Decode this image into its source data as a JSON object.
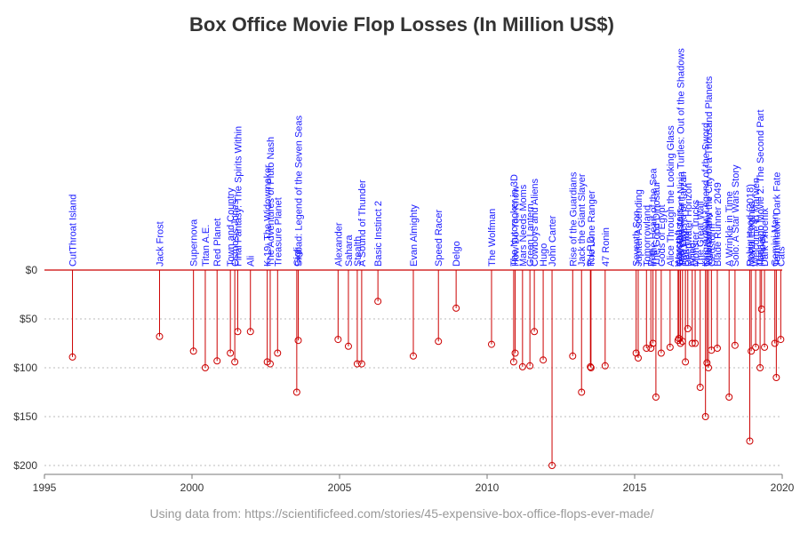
{
  "colors": {
    "stem": "#cc0000",
    "label": "#1a1aff",
    "title": "#333333",
    "footnote": "#999999",
    "grid": "#bbbbbb",
    "axis": "#777777"
  },
  "chart_data": {
    "type": "lollipop",
    "title": "Box Office Movie Flop Losses (In Million US$)",
    "footnote": "Using data from: https://scientificfeed.com/stories/45-expensive-box-office-flops-ever-made/",
    "xlabel": "",
    "ylabel": "",
    "xlim": [
      1995,
      2020
    ],
    "ylim": [
      0,
      200
    ],
    "x_ticks": [
      1995,
      2000,
      2005,
      2010,
      2015,
      2020
    ],
    "x_tick_labels": [
      "1995",
      "2000",
      "2005",
      "2010",
      "2015",
      "2020"
    ],
    "y_ticks": [
      0,
      50,
      100,
      150,
      200
    ],
    "y_tick_labels": [
      "$0",
      "$50",
      "$100",
      "$150",
      "$200"
    ],
    "y_direction": "downward",
    "grid": "horizontal dotted",
    "points": [
      {
        "label": "CutThroat Island",
        "x": 1995.95,
        "y": 89
      },
      {
        "label": "Jack Frost",
        "x": 1998.9,
        "y": 68
      },
      {
        "label": "Supernova",
        "x": 2000.05,
        "y": 83
      },
      {
        "label": "Titan A.E.",
        "x": 2000.45,
        "y": 100
      },
      {
        "label": "Red Planet",
        "x": 2000.85,
        "y": 93
      },
      {
        "label": "Town and Country",
        "x": 2001.3,
        "y": 85
      },
      {
        "label": "Osmosis Jones",
        "x": 2001.45,
        "y": 94
      },
      {
        "label": "Final Fantasy: The Spirits Within",
        "x": 2001.55,
        "y": 63
      },
      {
        "label": "Ali",
        "x": 2001.98,
        "y": 63
      },
      {
        "label": "K-19: The Widowmaker",
        "x": 2002.55,
        "y": 94
      },
      {
        "label": "The Adventures of Pluto Nash",
        "x": 2002.65,
        "y": 96
      },
      {
        "label": "Treasure Planet",
        "x": 2002.9,
        "y": 85
      },
      {
        "label": "Gigli",
        "x": 2003.55,
        "y": 125
      },
      {
        "label": "Sinbad: Legend of the Seven Seas",
        "x": 2003.6,
        "y": 72
      },
      {
        "label": "Alexander",
        "x": 2004.95,
        "y": 71
      },
      {
        "label": "Sahara",
        "x": 2005.3,
        "y": 78
      },
      {
        "label": "Stealth",
        "x": 2005.6,
        "y": 96
      },
      {
        "label": "A Sound of Thunder",
        "x": 2005.75,
        "y": 96
      },
      {
        "label": "Basic Instinct 2",
        "x": 2006.3,
        "y": 32
      },
      {
        "label": "Evan Almighty",
        "x": 2007.5,
        "y": 88
      },
      {
        "label": "Speed Racer",
        "x": 2008.35,
        "y": 73
      },
      {
        "label": "Delgo",
        "x": 2008.95,
        "y": 39
      },
      {
        "label": "The Wolfman",
        "x": 2010.15,
        "y": 76
      },
      {
        "label": "The Nutcracker in 3D",
        "x": 2010.9,
        "y": 94
      },
      {
        "label": "How Do You Know",
        "x": 2010.95,
        "y": 85
      },
      {
        "label": "Mars Needs Moms",
        "x": 2011.2,
        "y": 99
      },
      {
        "label": "Green Lantern",
        "x": 2011.45,
        "y": 98
      },
      {
        "label": "Cowboys and Aliens",
        "x": 2011.6,
        "y": 63
      },
      {
        "label": "Hugo",
        "x": 2011.9,
        "y": 92
      },
      {
        "label": "John Carter",
        "x": 2012.2,
        "y": 200
      },
      {
        "label": "Rise of the Guardians",
        "x": 2012.9,
        "y": 88
      },
      {
        "label": "Jack the Giant Slayer",
        "x": 2013.2,
        "y": 125
      },
      {
        "label": "R.I.P.D.",
        "x": 2013.5,
        "y": 99
      },
      {
        "label": "The Lone Ranger",
        "x": 2013.52,
        "y": 100
      },
      {
        "label": "47 Ronin",
        "x": 2014.0,
        "y": 98
      },
      {
        "label": "Seventh Son",
        "x": 2015.05,
        "y": 85
      },
      {
        "label": "Jupiter Ascending",
        "x": 2015.12,
        "y": 90
      },
      {
        "label": "Tomorrowland",
        "x": 2015.4,
        "y": 80
      },
      {
        "label": "Pan",
        "x": 2015.55,
        "y": 80
      },
      {
        "label": "In the Heart of the Sea",
        "x": 2015.62,
        "y": 75
      },
      {
        "label": "The Good Dinosaur",
        "x": 2015.72,
        "y": 130
      },
      {
        "label": "Gods of Egypt",
        "x": 2015.9,
        "y": 85
      },
      {
        "label": "Ghostbusters",
        "x": 2016.5,
        "y": 70
      },
      {
        "label": "Alice Through the Looking Glass",
        "x": 2016.2,
        "y": 79
      },
      {
        "label": "Teenage Mutant Ninja Turtles: Out of the Shadows",
        "x": 2016.55,
        "y": 75
      },
      {
        "label": "The Legend of Tarzan",
        "x": 2016.62,
        "y": 73
      },
      {
        "label": "Warcraft",
        "x": 2016.47,
        "y": 72
      },
      {
        "label": "Deepwater Horizon",
        "x": 2016.8,
        "y": 60
      },
      {
        "label": "Ben-Hur",
        "x": 2016.72,
        "y": 94
      },
      {
        "label": "Allied",
        "x": 2016.95,
        "y": 75
      },
      {
        "label": "Monster Trucks",
        "x": 2017.05,
        "y": 75
      },
      {
        "label": "The Great Wall",
        "x": 2017.22,
        "y": 120
      },
      {
        "label": "King Arthur: Legend of the Sword",
        "x": 2017.4,
        "y": 150
      },
      {
        "label": "The Mummy",
        "x": 2017.45,
        "y": 95
      },
      {
        "label": "Valerian and the City of a Thousand Planets",
        "x": 2017.5,
        "y": 100
      },
      {
        "label": "Geostorm",
        "x": 2017.6,
        "y": 82
      },
      {
        "label": "Blade Runner 2049",
        "x": 2017.8,
        "y": 80
      },
      {
        "label": "A Wrinkle in Time",
        "x": 2018.2,
        "y": 130
      },
      {
        "label": "Solo: A Star Wars Story",
        "x": 2018.4,
        "y": 77
      },
      {
        "label": "Robin Hood (2018)",
        "x": 2018.9,
        "y": 175
      },
      {
        "label": "Mortal Engines",
        "x": 2018.95,
        "y": 83
      },
      {
        "label": "Welcome to Marwen",
        "x": 2019.1,
        "y": 79
      },
      {
        "label": "The Lego Movie 2: The Second Part",
        "x": 2019.25,
        "y": 100
      },
      {
        "label": "Hellboy",
        "x": 2019.3,
        "y": 40
      },
      {
        "label": "Dark Phoenix",
        "x": 2019.4,
        "y": 79
      },
      {
        "label": "Gemini Man",
        "x": 2019.75,
        "y": 75
      },
      {
        "label": "Terminator: Dark Fate",
        "x": 2019.8,
        "y": 110
      },
      {
        "label": "Cats",
        "x": 2019.95,
        "y": 71
      }
    ]
  }
}
